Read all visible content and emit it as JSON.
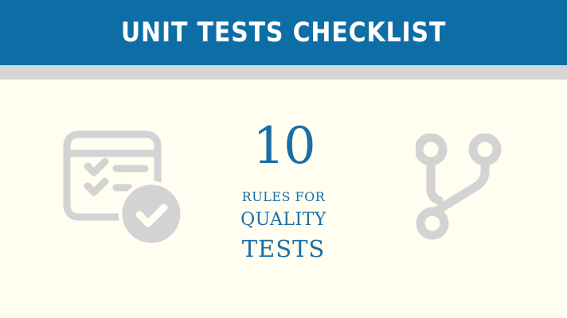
{
  "header": {
    "title": "UNIT TESTS CHECKLIST"
  },
  "center": {
    "number": "10",
    "line1": "RULES FOR",
    "line2": "QUALITY",
    "line3": "TESTS"
  },
  "icons": {
    "left": "checklist-window-icon",
    "right": "git-branch-icon"
  },
  "colors": {
    "header_bg": "#0d6ea5",
    "band": "#d6d6d4",
    "background": "#fffef0",
    "accent_text": "#1a6da5",
    "icon_gray": "#d3d3d3"
  }
}
